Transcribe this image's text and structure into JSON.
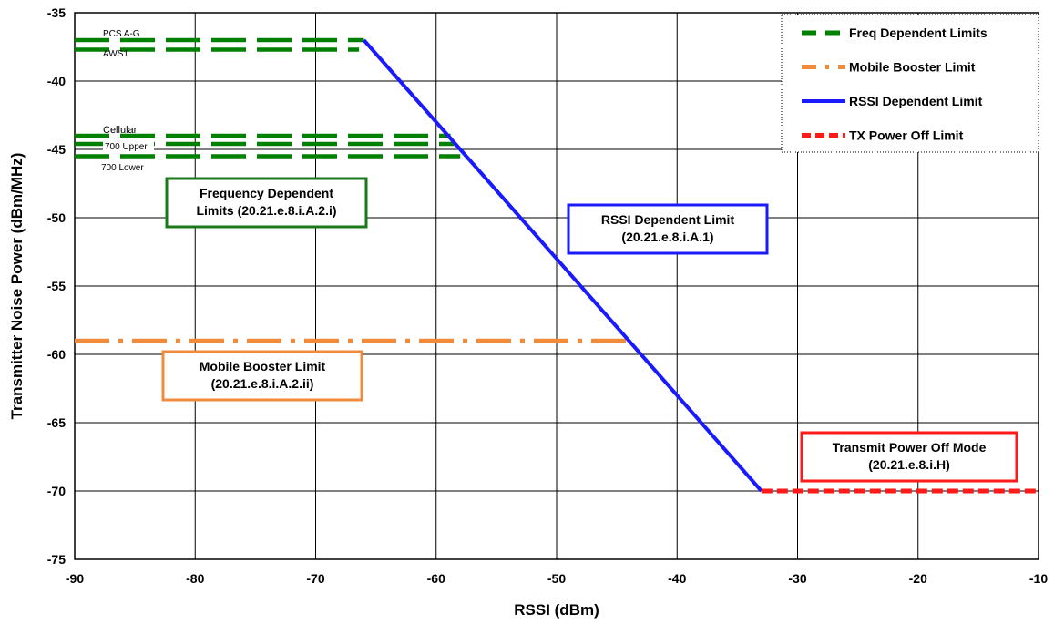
{
  "chart_data": {
    "type": "line",
    "xlabel": "RSSI (dBm)",
    "ylabel": "Transmitter Noise Power (dBm/MHz)",
    "xlim": [
      -90,
      -10
    ],
    "ylim": [
      -75,
      -35
    ],
    "grid": true,
    "x_ticks": [
      -90,
      -80,
      -70,
      -60,
      -50,
      -40,
      -30,
      -20,
      -10
    ],
    "y_ticks": [
      -35,
      -40,
      -45,
      -50,
      -55,
      -60,
      -65,
      -70,
      -75
    ],
    "x_tick_labels": [
      "-90",
      "-80",
      "-70",
      "-60",
      "-50",
      "-40",
      "-30",
      "-20",
      "-10"
    ],
    "y_tick_labels": [
      "-35",
      "-40",
      "-45",
      "-50",
      "-55",
      "-60",
      "-65",
      "-70",
      "-75"
    ],
    "legend_position": "top-right",
    "legend": [
      {
        "label": "Freq Dependent Limits",
        "style": "dashed",
        "color": "#008000"
      },
      {
        "label": "Mobile Booster Limit",
        "style": "dash-dot",
        "color": "#f08b3c"
      },
      {
        "label": "RSSI Dependent Limit",
        "style": "solid",
        "color": "#1a1aff"
      },
      {
        "label": "TX Power Off Limit",
        "style": "dashed",
        "color": "#ff1a1a"
      }
    ],
    "freq_dependent_series": [
      {
        "label": "PCS A-G",
        "y": -37.0,
        "x": [
          -90,
          -66
        ]
      },
      {
        "label": "AWS1",
        "y": -37.7,
        "x": [
          -90,
          -66.4
        ]
      },
      {
        "label": "Cellular",
        "y": -44.0,
        "x": [
          -90,
          -58.8
        ]
      },
      {
        "label": "700 Upper",
        "y": -44.6,
        "x": [
          -90,
          -58.5
        ]
      },
      {
        "label": "700 Lower",
        "y": -45.5,
        "x": [
          -90,
          -58
        ]
      }
    ],
    "mobile_booster_limit": {
      "y": -59,
      "x": [
        -90,
        -44
      ]
    },
    "rssi_dependent_limit": {
      "x": [
        -66,
        -33
      ],
      "y": [
        -37,
        -70
      ]
    },
    "tx_power_off_limit": {
      "y": -70,
      "x": [
        -33,
        -10
      ]
    },
    "annotations": [
      {
        "lines": [
          "Frequency Dependent",
          "Limits (20.21.e.8.i.A.2.i)"
        ],
        "color": "#1a7a1a"
      },
      {
        "lines": [
          "RSSI Dependent Limit",
          "(20.21.e.8.i.A.1)"
        ],
        "color": "#1a1aff"
      },
      {
        "lines": [
          "Mobile Booster Limit",
          "(20.21.e.8.i.A.2.ii)"
        ],
        "color": "#f08b3c"
      },
      {
        "lines": [
          "Transmit Power Off Mode",
          "(20.21.e.8.i.H)"
        ],
        "color": "#ff1a1a"
      }
    ]
  }
}
